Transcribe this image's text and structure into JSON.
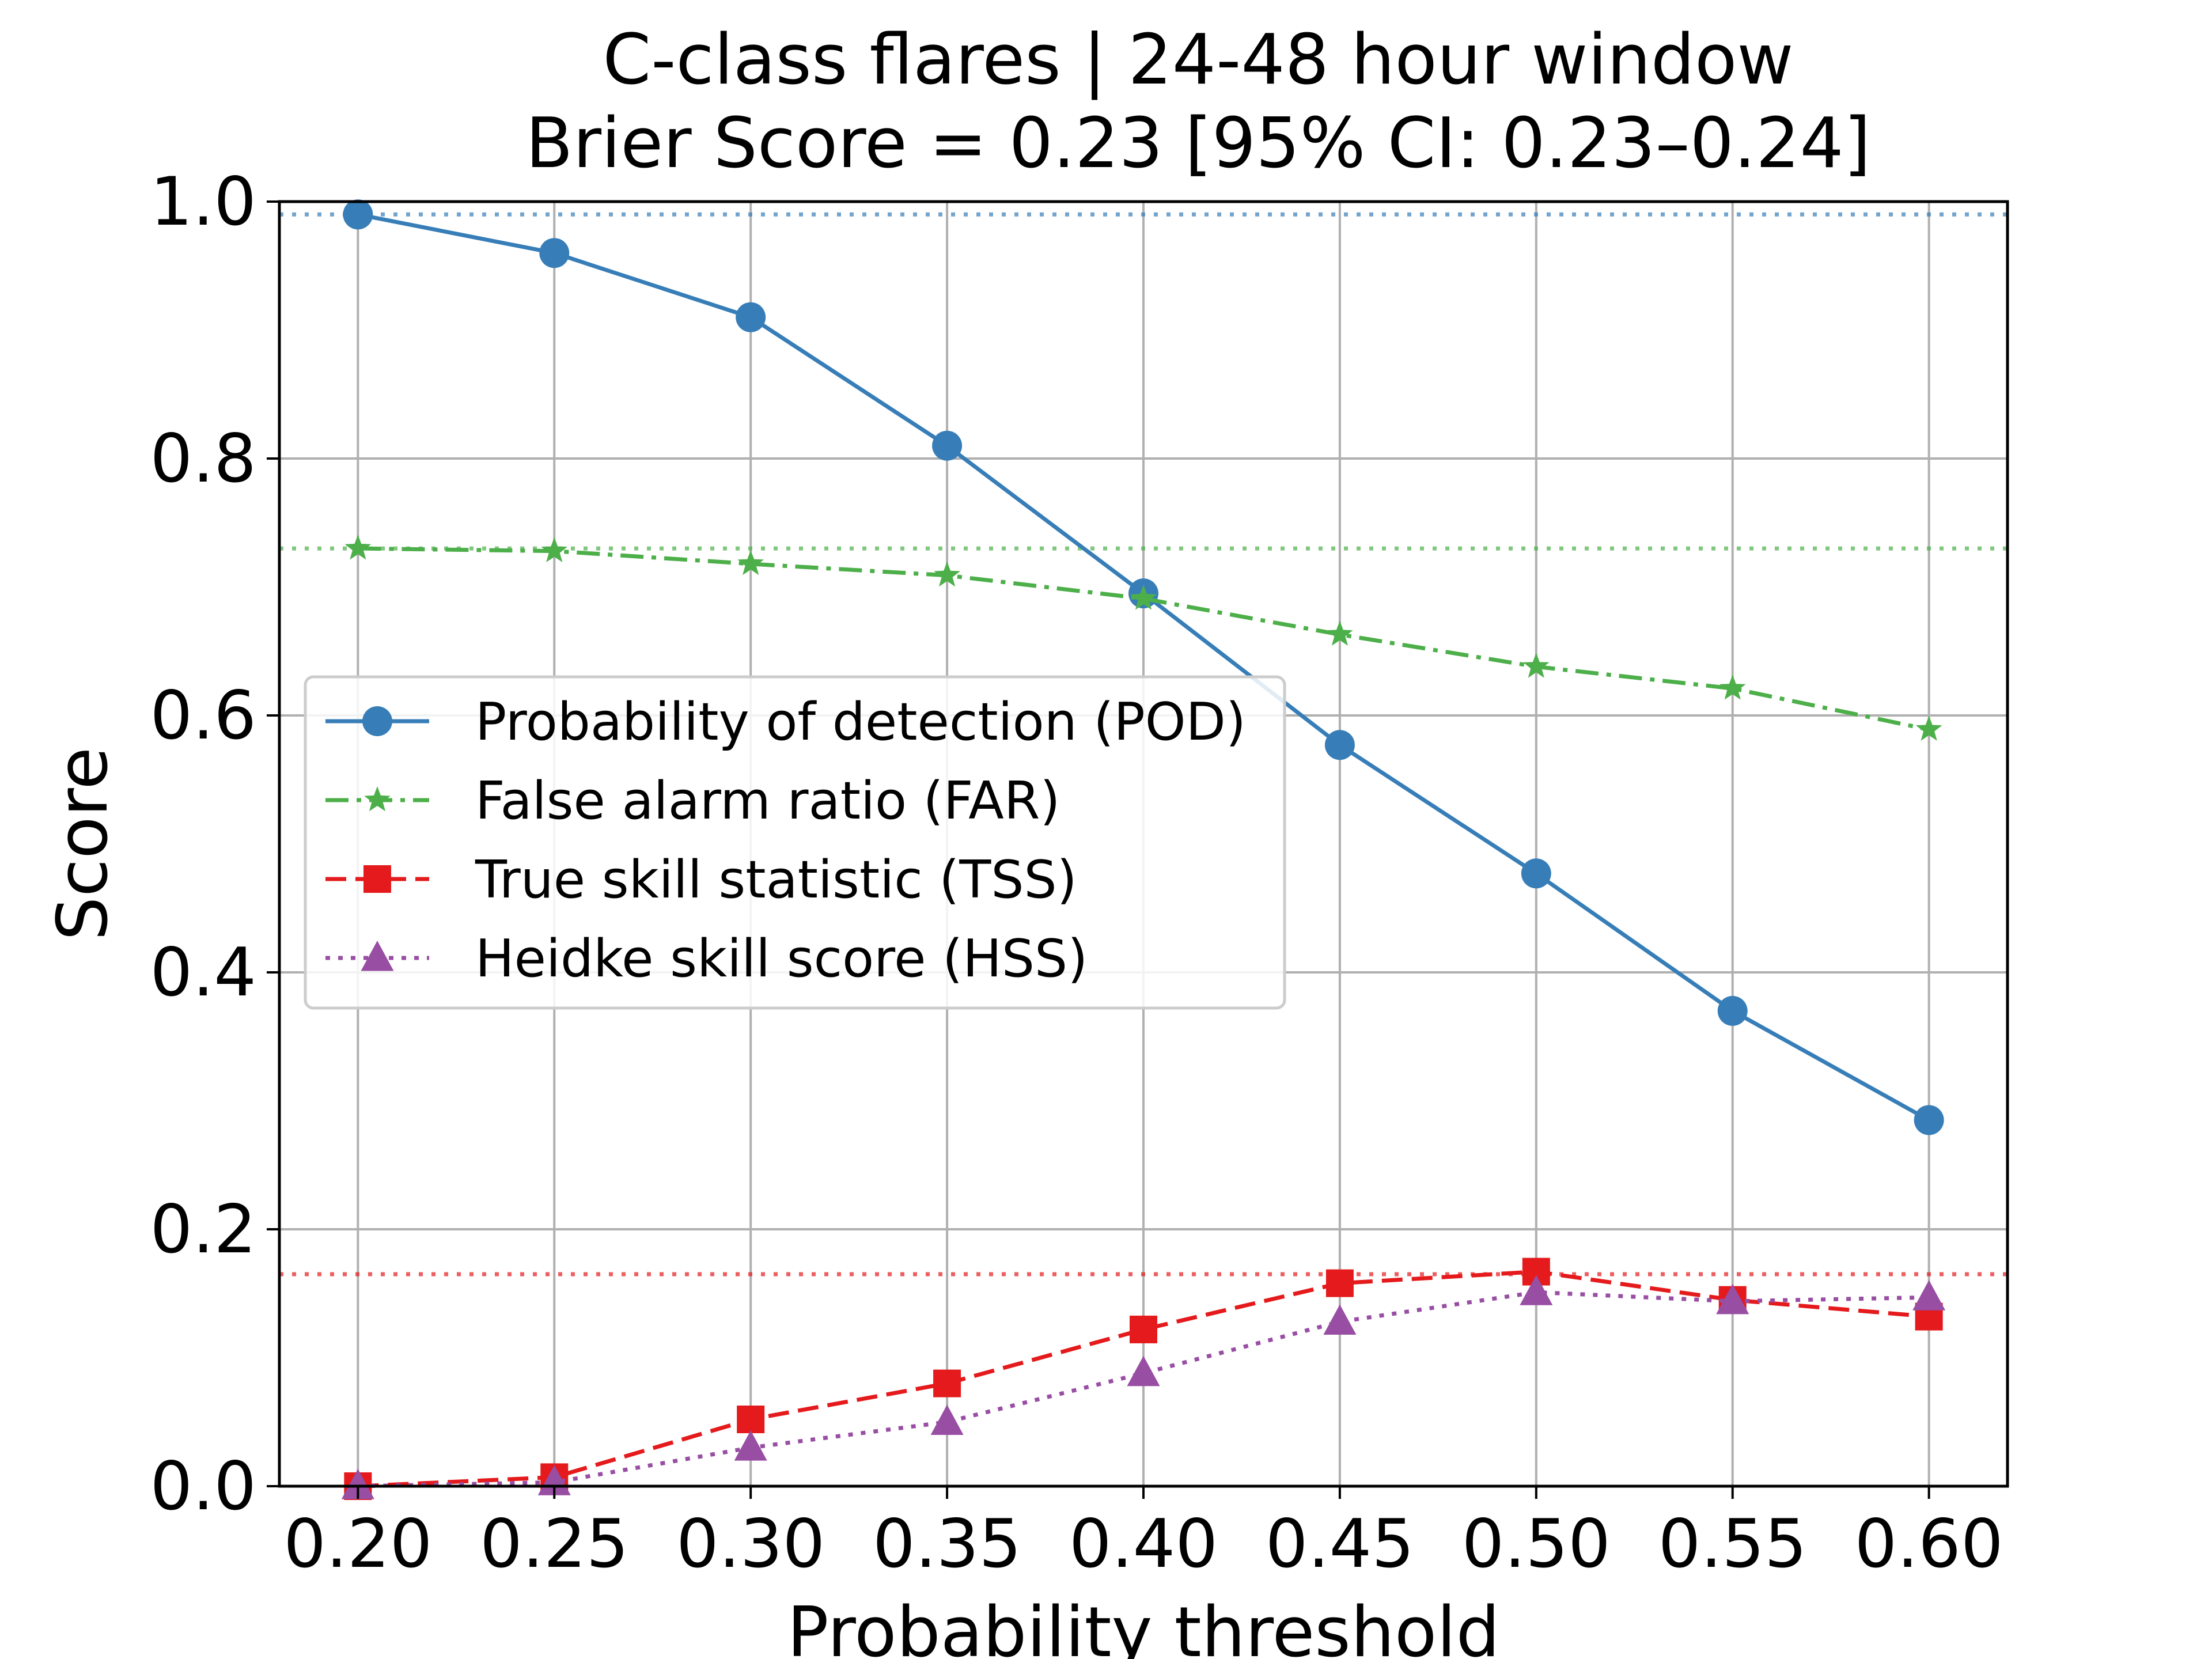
{
  "chart_data": {
    "type": "line",
    "title": "C-class flares | 24-48 hour window",
    "subtitle": "Brier Score = 0.23 [95% CI: 0.23–0.24]",
    "xlabel": "Probability threshold",
    "ylabel": "Score",
    "xlim": [
      0.18,
      0.62
    ],
    "ylim": [
      0.0,
      1.0
    ],
    "x": [
      0.2,
      0.25,
      0.3,
      0.35,
      0.4,
      0.45,
      0.5,
      0.55,
      0.6
    ],
    "x_tick_labels": [
      "0.20",
      "0.25",
      "0.30",
      "0.35",
      "0.40",
      "0.45",
      "0.50",
      "0.55",
      "0.60"
    ],
    "y_ticks": [
      0.0,
      0.2,
      0.4,
      0.6,
      0.8,
      1.0
    ],
    "y_tick_labels": [
      "0.0",
      "0.2",
      "0.4",
      "0.6",
      "0.8",
      "1.0"
    ],
    "grid": true,
    "legend_position": "center-left",
    "series": [
      {
        "name": "Probability of detection (POD)",
        "color": "#377eb8",
        "marker": "circle",
        "line": "solid",
        "values": [
          0.99,
          0.96,
          0.91,
          0.81,
          0.695,
          0.577,
          0.477,
          0.37,
          0.285
        ]
      },
      {
        "name": "False alarm ratio (FAR)",
        "color": "#4daf4a",
        "marker": "star",
        "line": "dashdot",
        "values": [
          0.73,
          0.728,
          0.718,
          0.709,
          0.691,
          0.663,
          0.638,
          0.621,
          0.589
        ]
      },
      {
        "name": "True skill statistic (TSS)",
        "color": "#e41a1c",
        "marker": "square",
        "line": "dashed",
        "values": [
          0.0,
          0.007,
          0.052,
          0.08,
          0.122,
          0.158,
          0.167,
          0.145,
          0.132
        ]
      },
      {
        "name": "Heidke skill score (HSS)",
        "color": "#984ea3",
        "marker": "triangle",
        "line": "dotted",
        "values": [
          0.0,
          0.003,
          0.03,
          0.05,
          0.088,
          0.128,
          0.151,
          0.144,
          0.147
        ]
      }
    ],
    "reference_lines": [
      {
        "y": 0.99,
        "color": "#377eb8",
        "style": "dotted"
      },
      {
        "y": 0.73,
        "color": "#4daf4a",
        "style": "dotted"
      },
      {
        "y": 0.165,
        "color": "#e41a1c",
        "style": "dotted"
      }
    ]
  }
}
